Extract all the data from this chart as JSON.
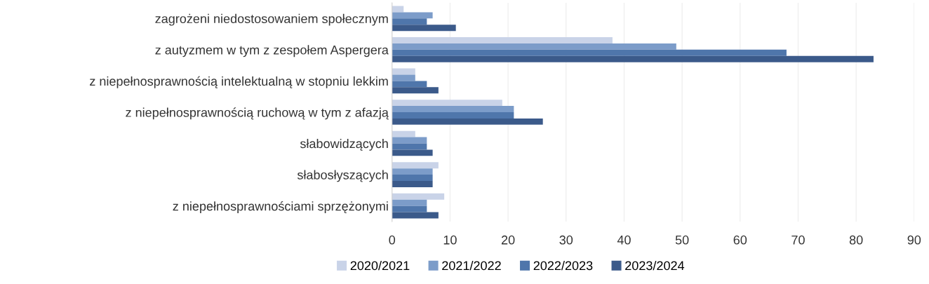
{
  "chart_data": {
    "type": "bar",
    "orientation": "horizontal",
    "categories": [
      "zagrożeni niedostosowaniem społecznym",
      "z autyzmem w tym z zespołem Aspergera",
      "z niepełnosprawnością intelektualną w stopniu lekkim",
      "z niepełnosprawnością ruchową w tym z afazją",
      "słabowidzących",
      "słabosłyszących",
      "z niepełnosprawnościami sprzężonymi"
    ],
    "series": [
      {
        "name": "2020/2021",
        "color": "#c9d3e8",
        "values": [
          2,
          38,
          4,
          19,
          4,
          8,
          9
        ]
      },
      {
        "name": "2021/2022",
        "color": "#7c9cc9",
        "values": [
          7,
          49,
          4,
          21,
          6,
          7,
          6
        ]
      },
      {
        "name": "2022/2023",
        "color": "#4f76ab",
        "values": [
          6,
          68,
          6,
          21,
          6,
          7,
          6
        ]
      },
      {
        "name": "2023/2024",
        "color": "#3b5a8a",
        "values": [
          11,
          83,
          8,
          26,
          7,
          7,
          8
        ]
      }
    ],
    "xlim": [
      0,
      90
    ],
    "xticks": [
      0,
      10,
      20,
      30,
      40,
      50,
      60,
      70,
      80,
      90
    ],
    "grid": "x",
    "legend": "bottom"
  }
}
